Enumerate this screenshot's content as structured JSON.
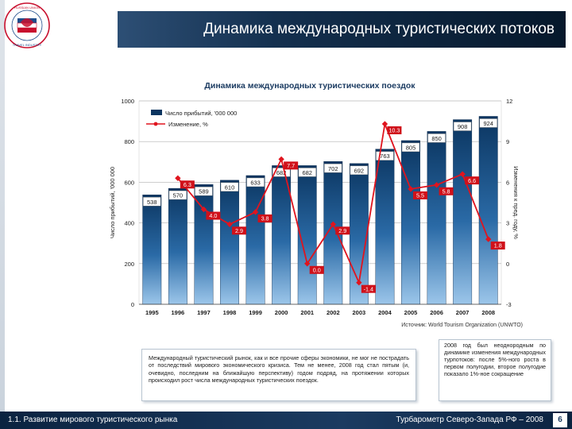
{
  "page": {
    "title": "Динамика международных туристических потоков",
    "logo_text": "Russian Union of Travel Industry"
  },
  "chart_data": {
    "type": "bar+line",
    "title": "Динамика международных туристических поездок",
    "categories": [
      "1995",
      "1996",
      "1997",
      "1998",
      "1999",
      "2000",
      "2001",
      "2002",
      "2003",
      "2004",
      "2005",
      "2006",
      "2007",
      "2008"
    ],
    "series": [
      {
        "name": "Число прибытий, '000 000",
        "type": "bar",
        "axis": "left",
        "values": [
          538,
          570,
          589,
          610,
          633,
          682,
          682,
          702,
          692,
          763,
          805,
          850,
          908,
          924
        ]
      },
      {
        "name": "Изменение, %",
        "type": "line",
        "axis": "right",
        "values": [
          null,
          6.3,
          4.0,
          2.9,
          3.8,
          7.7,
          0.0,
          2.9,
          -1.4,
          10.3,
          5.5,
          5.8,
          6.6,
          1.8
        ]
      }
    ],
    "ylabel": "Число прибытий, '000 000",
    "y2label": "Изменения к пред. году, %",
    "ylim": [
      0,
      1000
    ],
    "y2lim": [
      -3,
      12
    ],
    "yticks": [
      "0",
      "200",
      "400",
      "600",
      "800",
      "1000"
    ],
    "y2ticks": [
      "-3",
      "0",
      "3",
      "6",
      "9",
      "12"
    ],
    "legend_position": "top-left",
    "source": "Источник: World Tourism Organization (UNWTO)",
    "colors": {
      "bar_dark": "#0b3560",
      "bar_light": "#7fb2de",
      "line": "#e0141e",
      "label_bg": "#d0111a"
    }
  },
  "texts": {
    "main_paragraph": "Международный туристический рынок, как и все прочие сферы экономики, не мог не пострадать от последствий мирового экономического кризиса. Тем не менее, 2008 год стал пятым (и, очевидно, последним на ближайшую перспективу) годом подряд, на протяжении которых происходил рост числа международных туристических поездок.",
    "note": "2008 год был неоднородным по динамике изменения международных турпотоков: после 5%-ного роста в первом полугодии, второе полугодие показало 1%-ное сокращение"
  },
  "footer": {
    "left": "1.1. Развитие мирового туристического рынка",
    "right": "Турбарометр Северо-Запада РФ – 2008",
    "page": "6"
  }
}
